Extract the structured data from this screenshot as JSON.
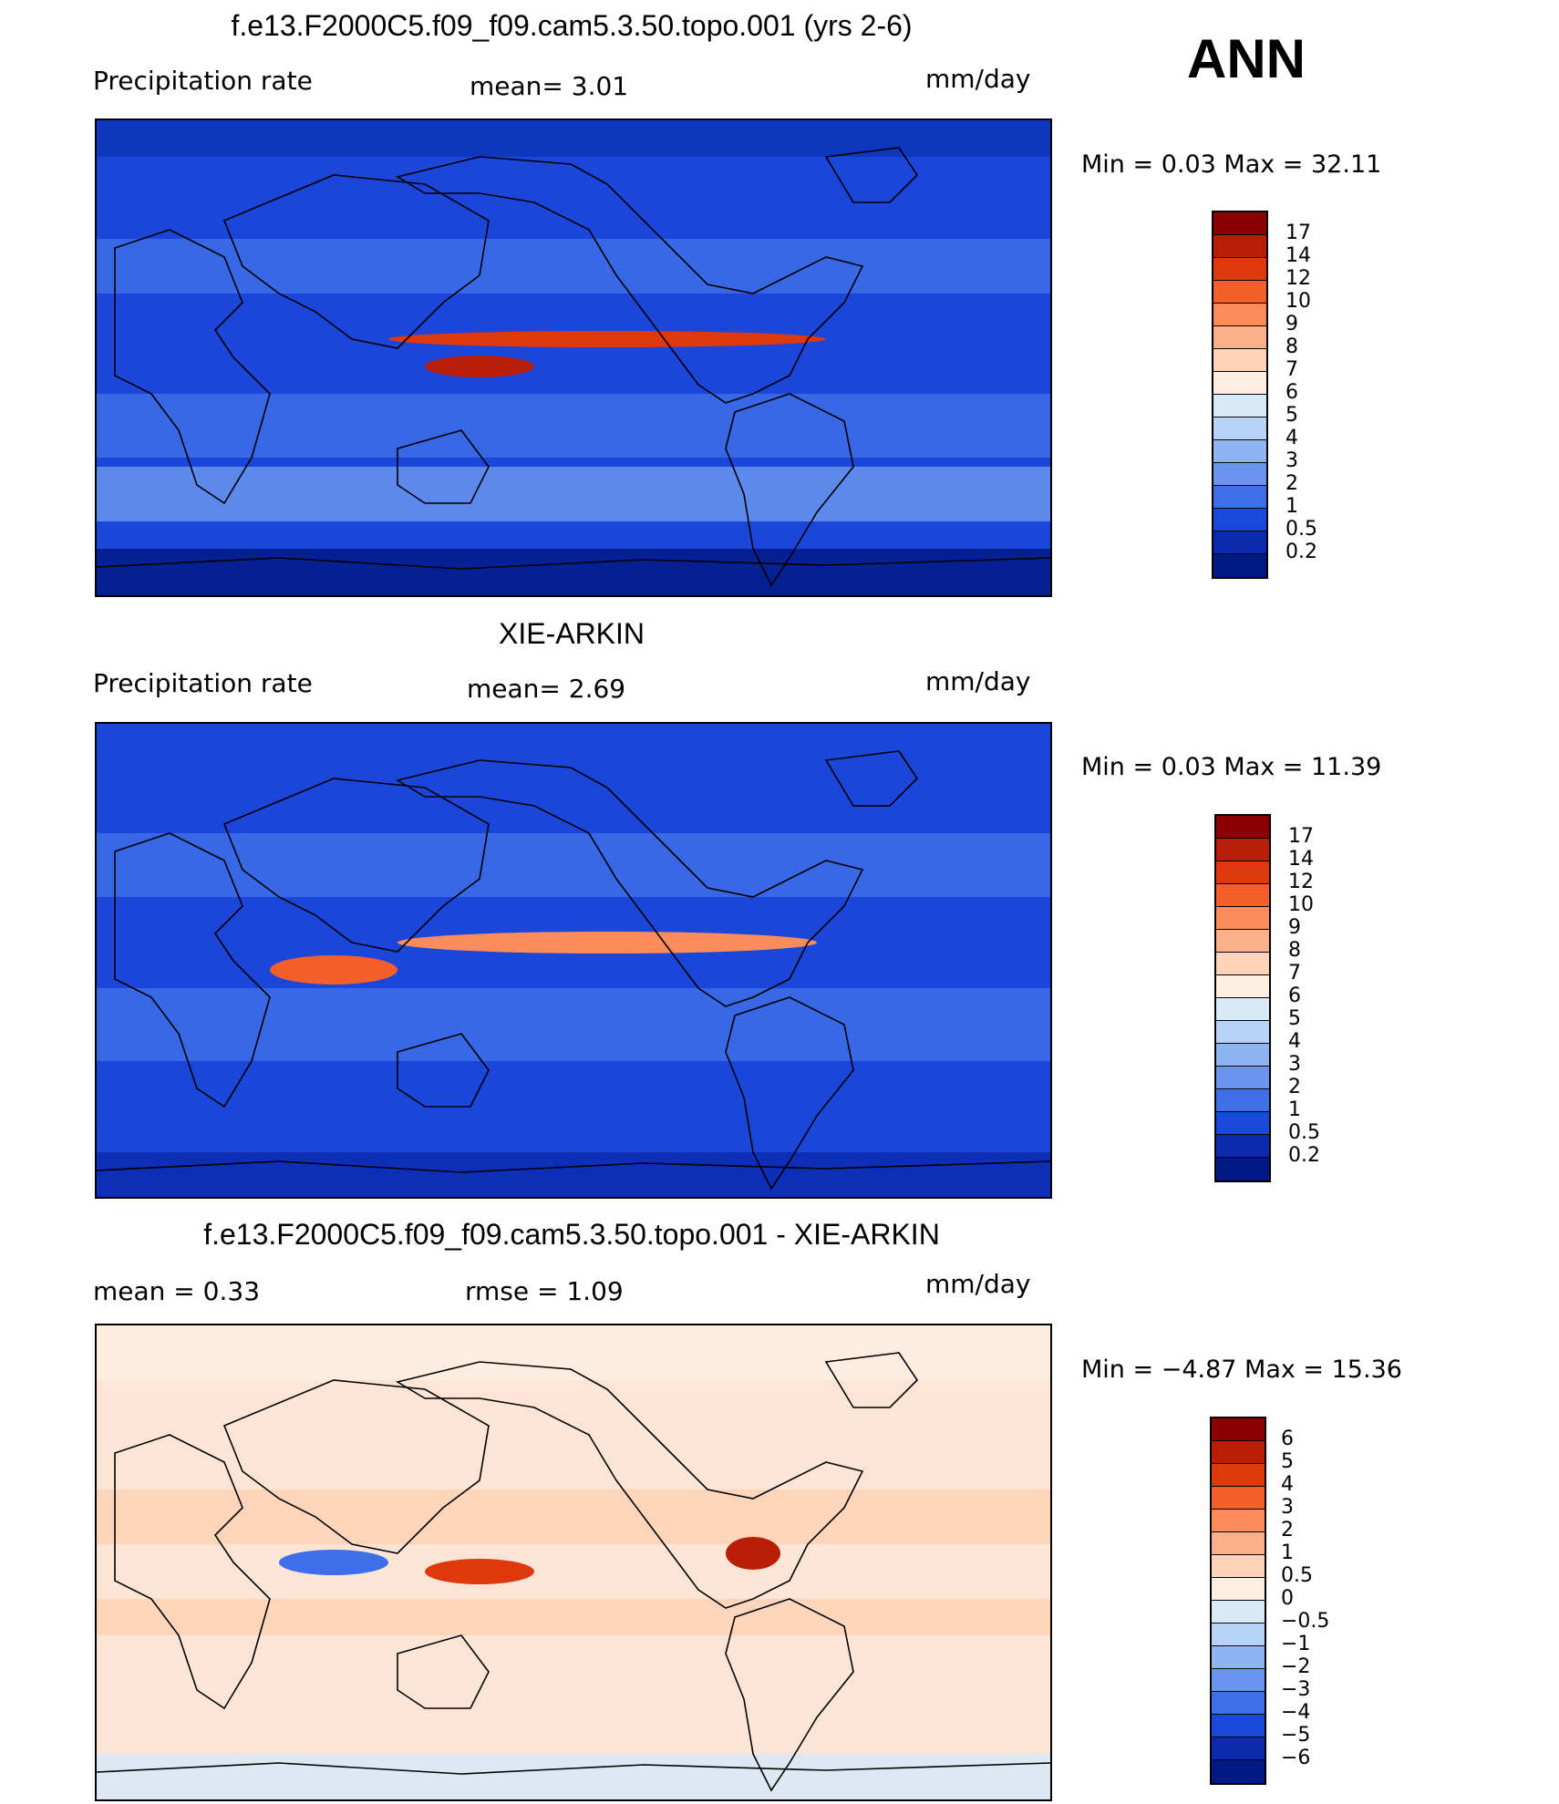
{
  "season": "ANN",
  "panels": [
    {
      "title": "f.e13.F2000C5.f09_f09.cam5.3.50.topo.001 (yrs 2-6)",
      "left_label": "Precipitation  rate",
      "mid_label": "mean=    3.01",
      "units": "mm/day",
      "minmax": "Min  =     0.03  Max  =    32.11",
      "colorbar_labels": [
        "17",
        "14",
        "12",
        "10",
        "9",
        "8",
        "7",
        "6",
        "5",
        "4",
        "3",
        "2",
        "1",
        "0.5",
        "0.2"
      ],
      "colorbar_colors": [
        "#8b0000",
        "#b81d05",
        "#e0380d",
        "#f5602a",
        "#fc8d5a",
        "#fdb08b",
        "#fdd2b6",
        "#fdeee0",
        "#d8e9f8",
        "#b7d2f6",
        "#8fb4f2",
        "#6a95ef",
        "#3e6ee9",
        "#1a48d8",
        "#0a2ab0",
        "#001a85"
      ],
      "style": "model"
    },
    {
      "title": "XIE-ARKIN",
      "left_label": "Precipitation  rate",
      "mid_label": "mean=    2.69",
      "units": "mm/day",
      "minmax": "Min  =     0.03  Max  =    11.39",
      "colorbar_labels": [
        "17",
        "14",
        "12",
        "10",
        "9",
        "8",
        "7",
        "6",
        "5",
        "4",
        "3",
        "2",
        "1",
        "0.5",
        "0.2"
      ],
      "colorbar_colors": [
        "#8b0000",
        "#b81d05",
        "#e0380d",
        "#f5602a",
        "#fc8d5a",
        "#fdb08b",
        "#fdd2b6",
        "#fdeee0",
        "#d8e9f8",
        "#b7d2f6",
        "#8fb4f2",
        "#6a95ef",
        "#3e6ee9",
        "#1a48d8",
        "#0a2ab0",
        "#001a85"
      ],
      "style": "obs"
    },
    {
      "title": "f.e13.F2000C5.f09_f09.cam5.3.50.topo.001 - XIE-ARKIN",
      "left_label": "mean  =     0.33",
      "mid_label": "rmse  =     1.09",
      "units": "mm/day",
      "minmax": "Min  =   −4.87  Max  =    15.36",
      "colorbar_labels": [
        "6",
        "5",
        "4",
        "3",
        "2",
        "1",
        "0.5",
        "0",
        "−0.5",
        "−1",
        "−2",
        "−3",
        "−4",
        "−5",
        "−6"
      ],
      "colorbar_colors": [
        "#8b0000",
        "#b81d05",
        "#e0380d",
        "#f5602a",
        "#fc8d5a",
        "#fdb08b",
        "#fdd2b6",
        "#fdeee0",
        "#d8e9f8",
        "#b7d2f6",
        "#8fb4f2",
        "#6a95ef",
        "#3e6ee9",
        "#1a48d8",
        "#0a2ab0",
        "#001a85"
      ],
      "style": "diff"
    }
  ]
}
